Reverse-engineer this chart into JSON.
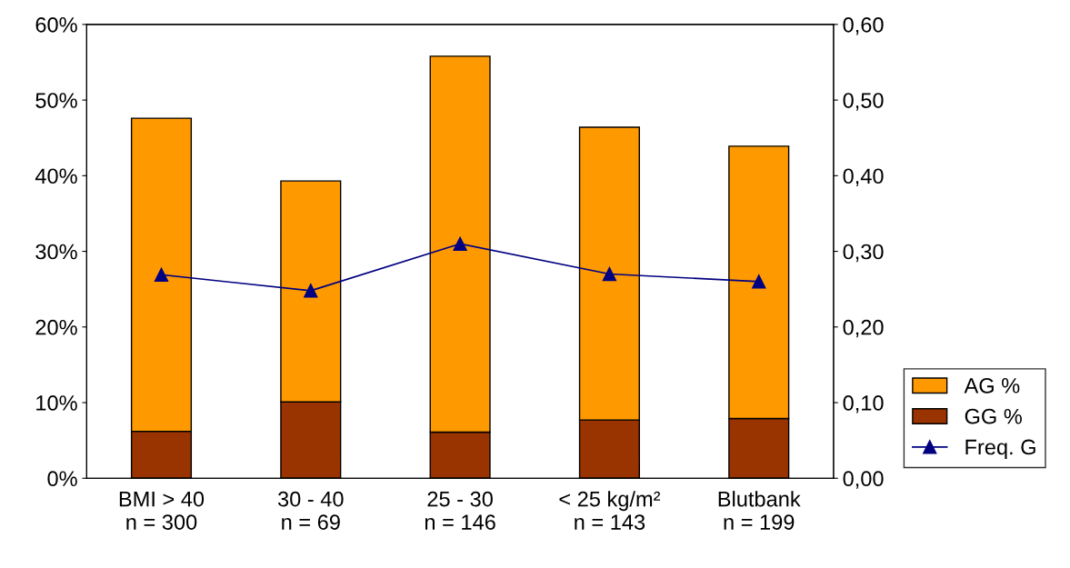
{
  "chart_data": {
    "type": "bar",
    "stacked": true,
    "categories": [
      "BMI > 40\nn = 300",
      "30 - 40\nn = 69",
      "25 - 30\nn = 146",
      "< 25 kg/m²\nn = 143",
      "Blutbank\nn = 199"
    ],
    "series": [
      {
        "name": "GG %",
        "color": "#993300",
        "values": [
          6.2,
          10.1,
          6.1,
          7.7,
          7.9
        ]
      },
      {
        "name": "AG %",
        "color": "#ff9900",
        "values": [
          41.4,
          29.2,
          49.7,
          38.7,
          36.0
        ]
      },
      {
        "name": "Freq. G",
        "type": "line",
        "axis": "y2",
        "color": "#000080",
        "marker": "triangle",
        "values": [
          0.269,
          0.248,
          0.31,
          0.27,
          0.26
        ]
      }
    ],
    "ylim": [
      0,
      60
    ],
    "yticks": [
      {
        "value": 0,
        "label": "0%"
      },
      {
        "value": 10,
        "label": "10%"
      },
      {
        "value": 20,
        "label": "20%"
      },
      {
        "value": 30,
        "label": "30%"
      },
      {
        "value": 40,
        "label": "40%"
      },
      {
        "value": 50,
        "label": "50%"
      },
      {
        "value": 60,
        "label": "60%"
      }
    ],
    "y2lim": [
      0,
      0.6
    ],
    "y2ticks": [
      {
        "value": 0,
        "label": "0,00"
      },
      {
        "value": 0.1,
        "label": "0,10"
      },
      {
        "value": 0.2,
        "label": "0,20"
      },
      {
        "value": 0.3,
        "label": "0,30"
      },
      {
        "value": 0.4,
        "label": "0,40"
      },
      {
        "value": 0.5,
        "label": "0,50"
      },
      {
        "value": 0.6,
        "label": "0,60"
      }
    ],
    "legend": "right",
    "grid": false
  }
}
